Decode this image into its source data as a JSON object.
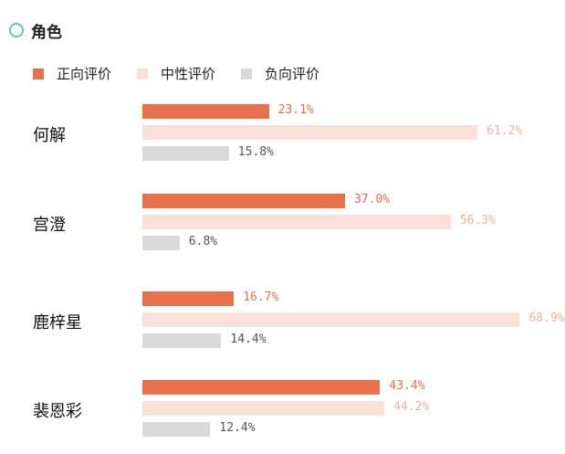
{
  "chart_data": {
    "type": "bar",
    "orientation": "horizontal",
    "title": "角色",
    "categories": [
      "何解",
      "宫澄",
      "鹿梓星",
      "裴恩彩"
    ],
    "series": [
      {
        "name": "正向评价",
        "color": "#e8704a",
        "label_color": "#e8704a",
        "values": [
          23.1,
          37.0,
          16.7,
          43.4
        ],
        "value_labels": [
          "23.1%",
          "37.0%",
          "16.7%",
          "43.4%"
        ]
      },
      {
        "name": "中性评价",
        "color": "#f9e0d9",
        "label_color": "#f0b39c",
        "values": [
          61.2,
          56.3,
          68.9,
          44.2
        ],
        "value_labels": [
          "61.2%",
          "56.3%",
          "68.9%",
          "44.2%"
        ]
      },
      {
        "name": "负向评价",
        "color": "#d9d9d9",
        "label_color": "#555555",
        "values": [
          15.8,
          6.8,
          14.4,
          12.4
        ],
        "value_labels": [
          "15.8%",
          "6.8%",
          "14.4%",
          "12.4%"
        ]
      }
    ],
    "xlim": [
      0,
      100
    ],
    "legend_position": "top-left",
    "grid": false
  },
  "header": {
    "accent_color": "#5ec8bd"
  }
}
